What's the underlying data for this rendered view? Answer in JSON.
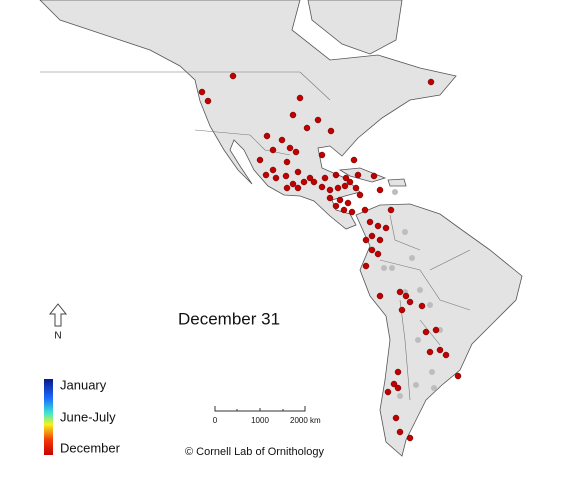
{
  "map": {
    "date_label": "December 31",
    "north_label": "N",
    "legend": {
      "labels": [
        "January",
        "June-July",
        "December"
      ]
    },
    "scale_bar": {
      "labels": [
        "0",
        "1000",
        "2000 km"
      ]
    },
    "credit": "© Cornell Lab of Ornithology"
  }
}
